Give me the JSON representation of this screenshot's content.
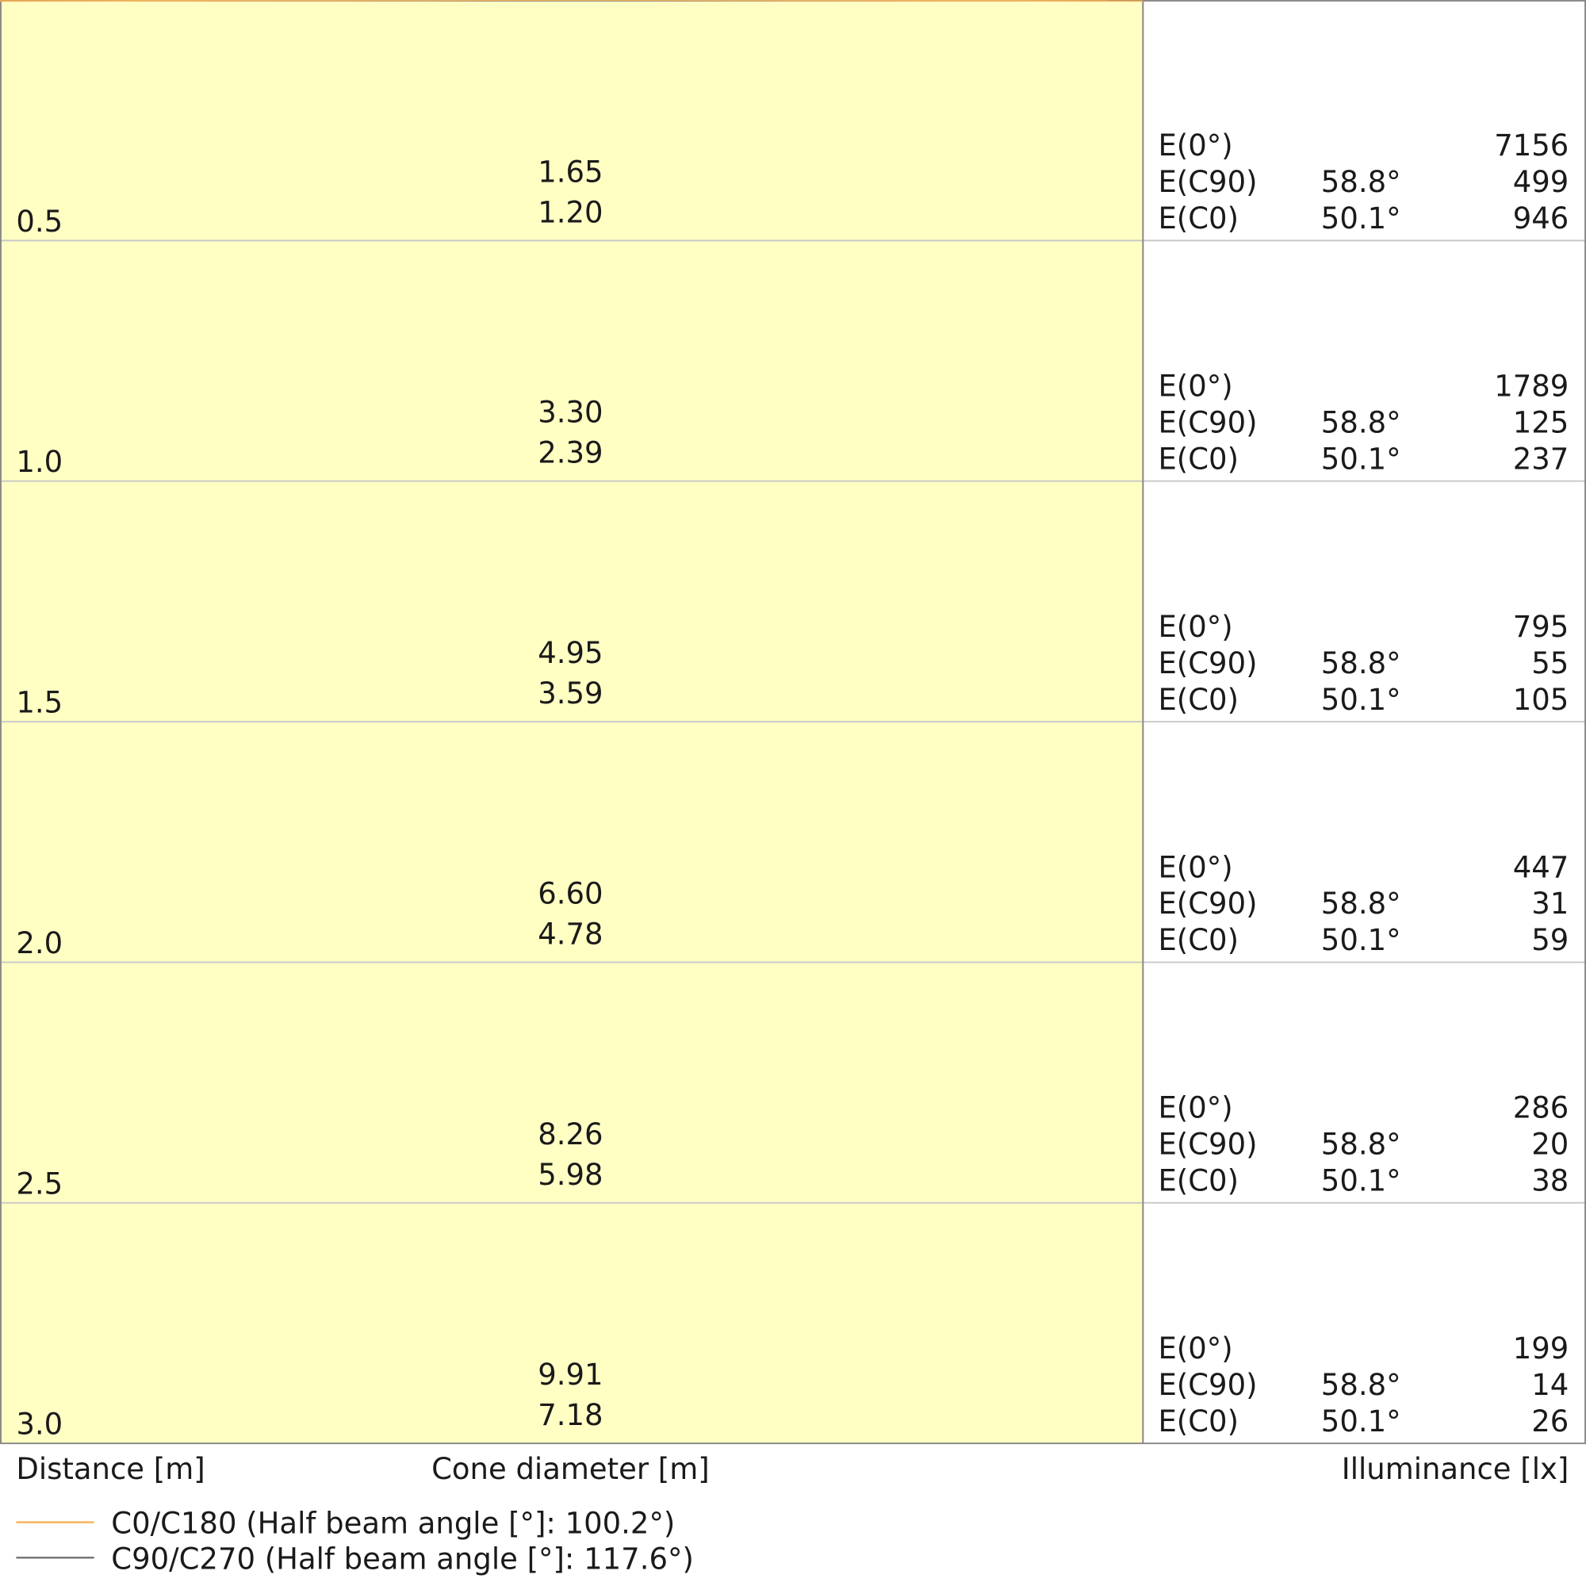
{
  "chart_data": {
    "type": "cone-diagram",
    "xlabel": "Cone diameter [m]",
    "ylabel": "Distance [m]",
    "table_label": "Illuminance [lx]",
    "distances": [
      "0.5",
      "1.0",
      "1.5",
      "2.0",
      "2.5",
      "3.0"
    ],
    "ylim": [
      0,
      3.0
    ],
    "grid": true,
    "series": [
      {
        "name": "C0/C180 (Half beam angle [°]: 100.2°)",
        "color": "#f5b35a",
        "diameters": [
          "1.20",
          "2.39",
          "3.59",
          "4.78",
          "5.98",
          "7.18"
        ]
      },
      {
        "name": "C90/C270 (Half beam angle [°]: 117.6°)",
        "color": "#777777",
        "diameters": [
          "1.65",
          "3.30",
          "4.95",
          "6.60",
          "8.26",
          "9.91"
        ]
      }
    ],
    "illuminance": [
      {
        "e0_label": "E(0°)",
        "e0": "7156",
        "c90_label": "E(C90)",
        "c90_angle": "58.8°",
        "c90": "499",
        "c0_label": "E(C0)",
        "c0_angle": "50.1°",
        "c0": "946"
      },
      {
        "e0_label": "E(0°)",
        "e0": "1789",
        "c90_label": "E(C90)",
        "c90_angle": "58.8°",
        "c90": "125",
        "c0_label": "E(C0)",
        "c0_angle": "50.1°",
        "c0": "237"
      },
      {
        "e0_label": "E(0°)",
        "e0": "795",
        "c90_label": "E(C90)",
        "c90_angle": "58.8°",
        "c90": "55",
        "c0_label": "E(C0)",
        "c0_angle": "50.1°",
        "c0": "105"
      },
      {
        "e0_label": "E(0°)",
        "e0": "447",
        "c90_label": "E(C90)",
        "c90_angle": "58.8°",
        "c90": "31",
        "c0_label": "E(C0)",
        "c0_angle": "50.1°",
        "c0": "59"
      },
      {
        "e0_label": "E(0°)",
        "e0": "286",
        "c90_label": "E(C90)",
        "c90_angle": "58.8°",
        "c90": "20",
        "c0_label": "E(C0)",
        "c0_angle": "50.1°",
        "c0": "38"
      },
      {
        "e0_label": "E(0°)",
        "e0": "199",
        "c90_label": "E(C90)",
        "c90_angle": "58.8°",
        "c90": "14",
        "c0_label": "E(C0)",
        "c0_angle": "50.1°",
        "c0": "26"
      }
    ],
    "colors": {
      "outer_fill": "#fffde0",
      "inner_fill": "#ffffc4",
      "grid": "#c8c8c8",
      "frame": "#888888"
    }
  }
}
